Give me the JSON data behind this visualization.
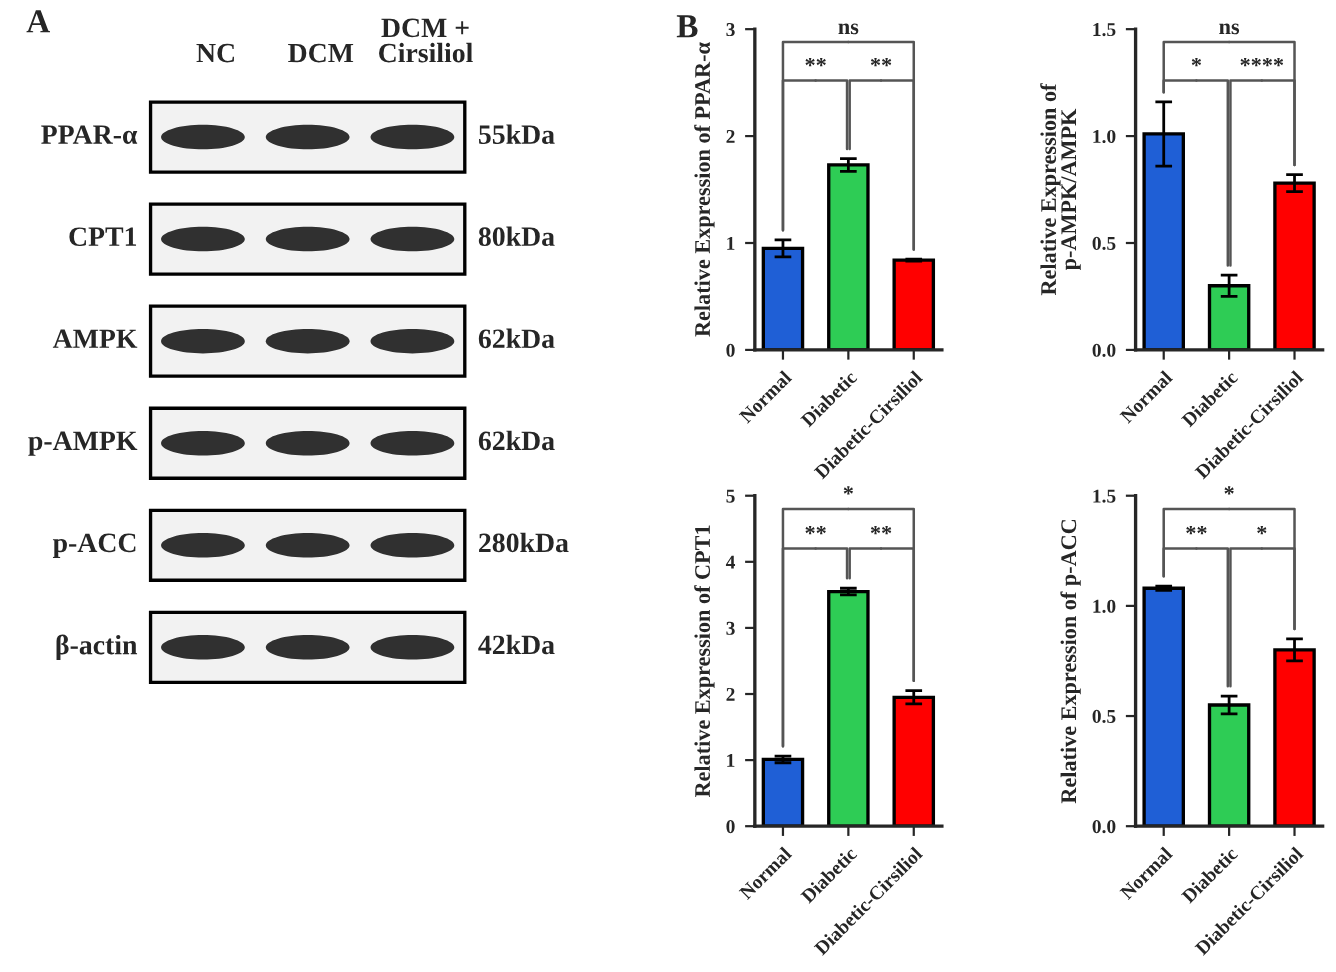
{
  "chart_data": [
    {
      "type": "other",
      "title": "A",
      "categories": [
        "NC",
        "DCM",
        "DCM +\nCirsiliol"
      ],
      "y_categories": [
        "PPAR-α",
        "CPT1",
        "AMPK",
        "p-AMPK",
        "p-ACC",
        "β-actin"
      ],
      "y2_categories": [
        "55kDa",
        "80kDa",
        "62kDa",
        "62kDa",
        "280kDa",
        "42kDa"
      ]
    },
    {
      "type": "bar",
      "title": "B",
      "ylabel": "Relative Expression of PPAR-α",
      "categories": [
        "Normal",
        "Diabetic",
        "Diabetic-Cirsiliol"
      ],
      "values": [
        0.95,
        1.73,
        0.84
      ],
      "errors": [
        0.08,
        0.06,
        0.01
      ],
      "colors": [
        "#1f5fd6",
        "#2ecc55",
        "#ff0000"
      ],
      "ylim": [
        0,
        3
      ],
      "yticks": [
        0,
        1,
        2,
        3
      ],
      "annotations": [
        "ns",
        "**",
        "**"
      ]
    },
    {
      "type": "bar",
      "ylabel": "Relative Expression of\np-AMPK/AMPK",
      "categories": [
        "Normal",
        "Diabetic",
        "Diabetic-Cirsiliol"
      ],
      "values": [
        1.01,
        0.3,
        0.78
      ],
      "errors": [
        0.15,
        0.05,
        0.04
      ],
      "colors": [
        "#1f5fd6",
        "#2ecc55",
        "#ff0000"
      ],
      "ylim": [
        0,
        1.5
      ],
      "yticks": [
        {
          "value": 0,
          "label": "0.0"
        },
        {
          "value": 0.5,
          "label": "0.5"
        },
        {
          "value": 1,
          "label": "1.0"
        },
        {
          "value": 1.5,
          "label": "1.5"
        }
      ],
      "annotations": [
        "ns",
        "*",
        "****"
      ]
    },
    {
      "type": "bar",
      "ylabel": "Relative Expression of CPT1",
      "categories": [
        "Normal",
        "Diabetic",
        "Diabetic-Cirsiliol"
      ],
      "values": [
        1.01,
        3.55,
        1.95
      ],
      "errors": [
        0.05,
        0.05,
        0.1
      ],
      "colors": [
        "#1f5fd6",
        "#2ecc55",
        "#ff0000"
      ],
      "ylim": [
        0,
        5
      ],
      "yticks": [
        0,
        1,
        2,
        3,
        4,
        5
      ],
      "annotations": [
        "*",
        "**",
        "**"
      ]
    },
    {
      "type": "bar",
      "ylabel": "Relative Expression of p-ACC",
      "categories": [
        "Normal",
        "Diabetic",
        "Diabetic-Cirsiliol"
      ],
      "values": [
        1.08,
        0.55,
        0.8
      ],
      "errors": [
        0.01,
        0.04,
        0.05
      ],
      "colors": [
        "#1f5fd6",
        "#2ecc55",
        "#ff0000"
      ],
      "ylim": [
        0,
        1.5
      ],
      "yticks": [
        {
          "value": 0,
          "label": "0.0"
        },
        {
          "value": 0.5,
          "label": "0.5"
        },
        {
          "value": 1,
          "label": "1.0"
        },
        {
          "value": 1.5,
          "label": "1.5"
        }
      ],
      "annotations": [
        "*",
        "**",
        "*"
      ]
    }
  ]
}
